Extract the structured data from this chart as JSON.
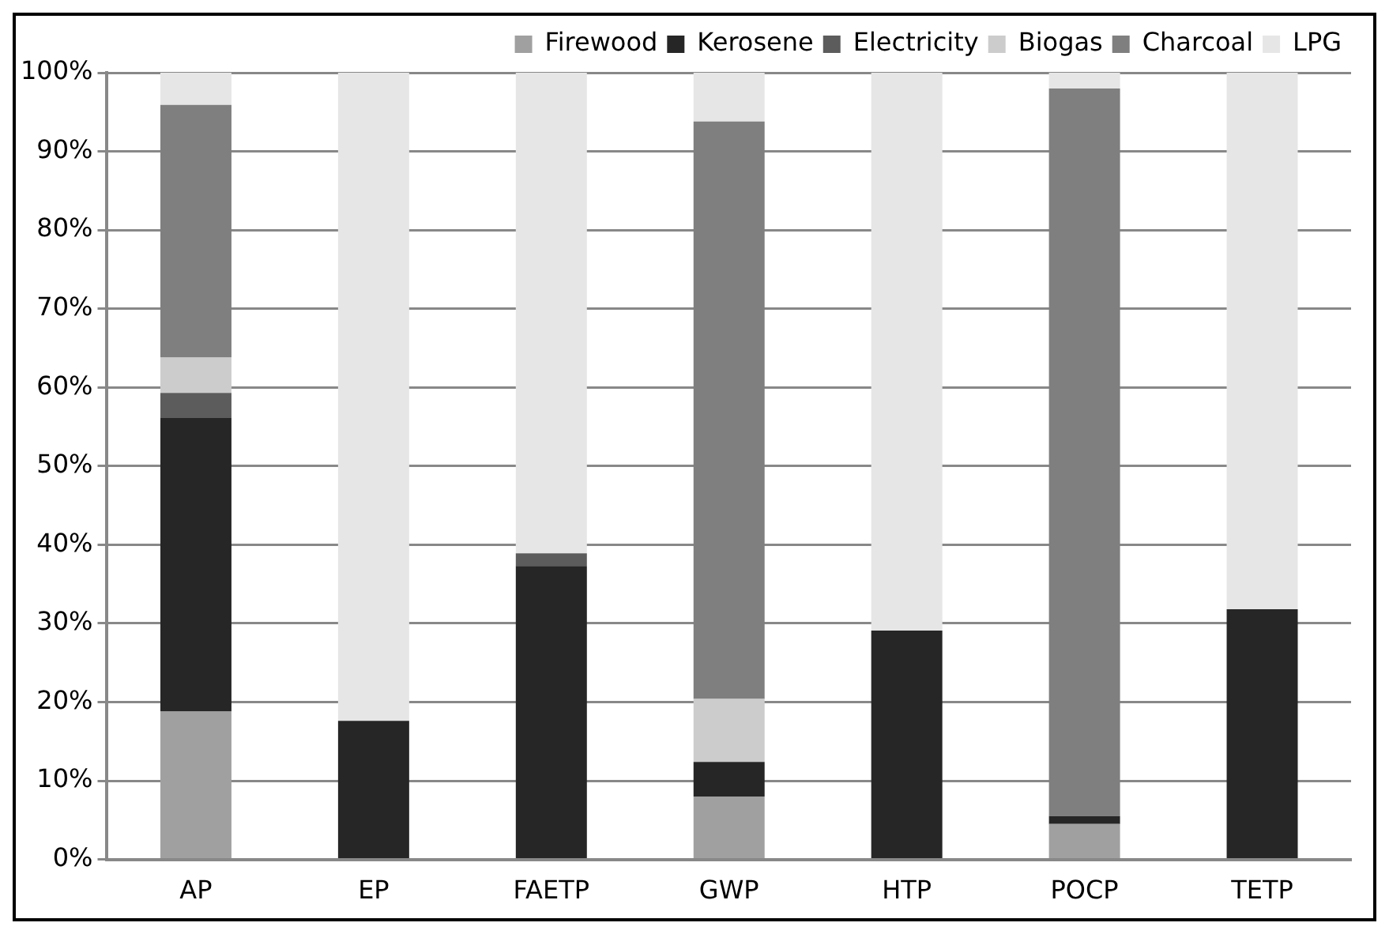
{
  "chart_data": {
    "type": "bar",
    "stacked": true,
    "categories": [
      "AP",
      "EP",
      "FAETP",
      "GWP",
      "HTP",
      "POCP",
      "TETP"
    ],
    "series": [
      {
        "name": "Firewood",
        "color": "#a0a0a0",
        "values": [
          18.8,
          0,
          0,
          8.0,
          0,
          4.5,
          0
        ]
      },
      {
        "name": "Kerosene",
        "color": "#262626",
        "values": [
          37.3,
          17.6,
          37.3,
          4.4,
          29.1,
          1.0,
          31.8
        ]
      },
      {
        "name": "Electricity",
        "color": "#5c5c5c",
        "values": [
          3.2,
          0,
          1.6,
          0,
          0,
          0,
          0
        ]
      },
      {
        "name": "Biogas",
        "color": "#cccccc",
        "values": [
          4.5,
          0,
          0,
          8.0,
          0,
          0,
          0
        ]
      },
      {
        "name": "Charcoal",
        "color": "#7f7f7f",
        "values": [
          32.1,
          0,
          0,
          73.4,
          0,
          92.5,
          0
        ]
      },
      {
        "name": "LPG",
        "color": "#e6e6e6",
        "values": [
          4.1,
          82.4,
          61.1,
          6.2,
          70.9,
          2.0,
          68.2
        ]
      }
    ],
    "ylim": [
      0,
      100
    ],
    "yticks": [
      {
        "value": 0,
        "label": "0%"
      },
      {
        "value": 10,
        "label": "10%"
      },
      {
        "value": 20,
        "label": "20%"
      },
      {
        "value": 30,
        "label": "30%"
      },
      {
        "value": 40,
        "label": "40%"
      },
      {
        "value": 50,
        "label": "50%"
      },
      {
        "value": 60,
        "label": "60%"
      },
      {
        "value": 70,
        "label": "70%"
      },
      {
        "value": 80,
        "label": "80%"
      },
      {
        "value": 90,
        "label": "90%"
      },
      {
        "value": 100,
        "label": "100%"
      }
    ],
    "grid": "y",
    "legend": "top right"
  }
}
